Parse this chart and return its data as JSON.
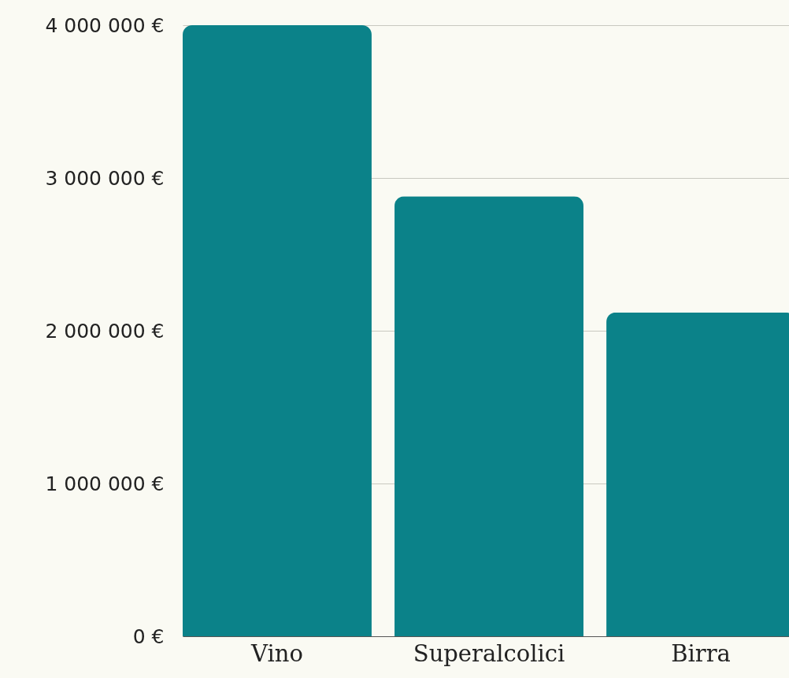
{
  "chart_data": {
    "type": "bar",
    "categories": [
      "Vino",
      "Superalcolici",
      "Birra"
    ],
    "values": [
      4000000,
      2880000,
      2120000
    ],
    "color": "#0b8289",
    "ylim": [
      0,
      4000000
    ],
    "yticks": [
      {
        "value": 0,
        "label": "0 €"
      },
      {
        "value": 1000000,
        "label": "1 000 000 €"
      },
      {
        "value": 2000000,
        "label": "2 000 000 €"
      },
      {
        "value": 3000000,
        "label": "3 000 000 €"
      },
      {
        "value": 4000000,
        "label": "4 000 000 €"
      }
    ],
    "grid": "y"
  }
}
